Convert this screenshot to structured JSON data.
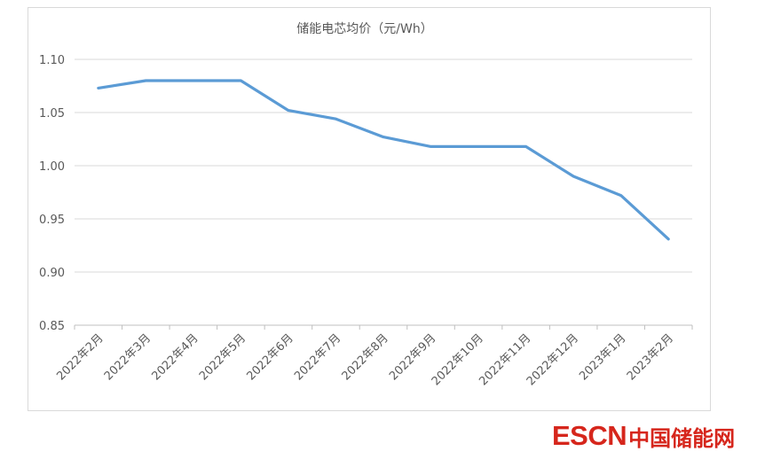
{
  "chart_data": {
    "type": "line",
    "title": "储能电芯均价（元/Wh）",
    "xlabel": "",
    "ylabel": "",
    "categories": [
      "2022年2月",
      "2022年3月",
      "2022年4月",
      "2022年5月",
      "2022年6月",
      "2022年7月",
      "2022年8月",
      "2022年9月",
      "2022年10月",
      "2022年11月",
      "2022年12月",
      "2023年1月",
      "2023年2月"
    ],
    "series": [
      {
        "values": [
          1.073,
          1.08,
          1.08,
          1.08,
          1.052,
          1.044,
          1.027,
          1.018,
          1.018,
          1.018,
          0.99,
          0.972,
          0.931
        ]
      }
    ],
    "ylim": [
      0.85,
      1.1
    ],
    "yticks": [
      "1.10",
      "1.05",
      "1.00",
      "0.95",
      "0.90",
      "0.85"
    ],
    "grid": true,
    "legend": "none",
    "line_color": "#5b9bd5"
  },
  "watermark": {
    "brand": "ESCN",
    "name": "中国储能网",
    "color": "#d6261c"
  }
}
